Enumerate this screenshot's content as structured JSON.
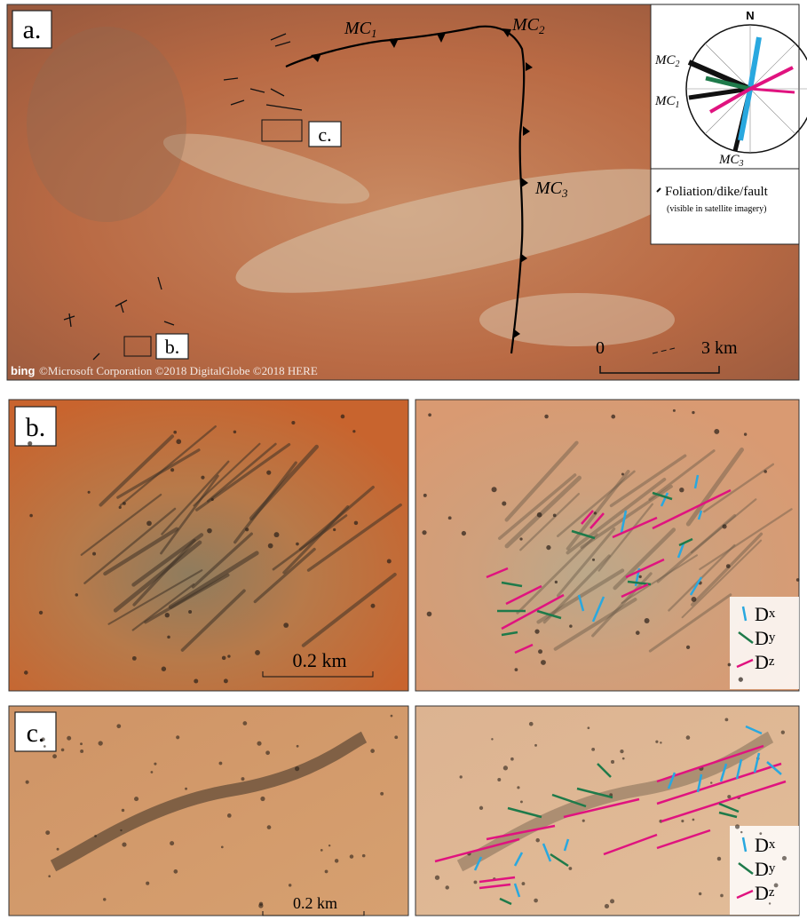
{
  "panels": {
    "a": {
      "label": "a.",
      "thrusts": [
        {
          "main": "MC",
          "sub": "1"
        },
        {
          "main": "MC",
          "sub": "2"
        },
        {
          "main": "MC",
          "sub": "3"
        }
      ],
      "rose": {
        "north": "N",
        "labels": [
          {
            "main": "MC",
            "sub": "2"
          },
          {
            "main": "MC",
            "sub": "1"
          },
          {
            "main": "MC",
            "sub": "3"
          }
        ]
      },
      "legend": {
        "title": "Foliation/dike/fault",
        "note": "(visible in satellite imagery)"
      },
      "insets": [
        "c.",
        "b."
      ],
      "attribution": {
        "logo": "bing",
        "text": "©Microsoft Corporation ©2018 DigitalGlobe ©2018 HERE"
      },
      "scale": {
        "start": "0",
        "end": "3 km"
      }
    },
    "b": {
      "label": "b.",
      "scale": "0.2 km",
      "legend": [
        {
          "main": "D",
          "sub": "x"
        },
        {
          "main": "D",
          "sub": "y"
        },
        {
          "main": "D",
          "sub": "z"
        }
      ]
    },
    "c": {
      "label": "c.",
      "scale": "0.2 km",
      "legend": [
        {
          "main": "D",
          "sub": "x"
        },
        {
          "main": "D",
          "sub": "y"
        },
        {
          "main": "D",
          "sub": "z"
        }
      ]
    }
  }
}
